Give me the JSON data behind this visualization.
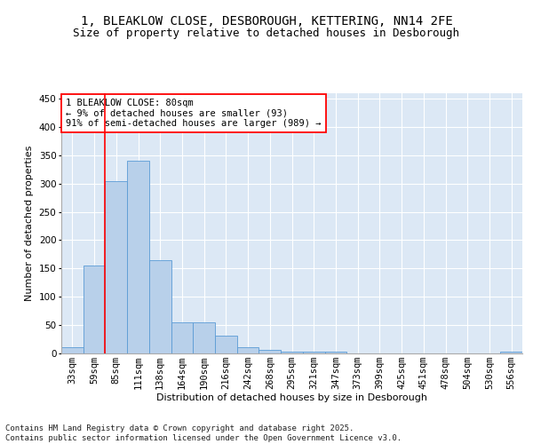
{
  "title_line1": "1, BLEAKLOW CLOSE, DESBOROUGH, KETTERING, NN14 2FE",
  "title_line2": "Size of property relative to detached houses in Desborough",
  "xlabel": "Distribution of detached houses by size in Desborough",
  "ylabel": "Number of detached properties",
  "bar_color": "#b8d0ea",
  "bar_edge_color": "#5b9bd5",
  "bg_color": "#dce8f5",
  "annotation_text": "1 BLEAKLOW CLOSE: 80sqm\n← 9% of detached houses are smaller (93)\n91% of semi-detached houses are larger (989) →",
  "categories": [
    "33sqm",
    "59sqm",
    "85sqm",
    "111sqm",
    "138sqm",
    "164sqm",
    "190sqm",
    "216sqm",
    "242sqm",
    "268sqm",
    "295sqm",
    "321sqm",
    "347sqm",
    "373sqm",
    "399sqm",
    "425sqm",
    "451sqm",
    "478sqm",
    "504sqm",
    "530sqm",
    "556sqm"
  ],
  "values": [
    10,
    155,
    305,
    340,
    165,
    55,
    55,
    30,
    10,
    5,
    2,
    2,
    2,
    0,
    0,
    0,
    0,
    0,
    0,
    0,
    2
  ],
  "ylim": [
    0,
    460
  ],
  "yticks": [
    0,
    50,
    100,
    150,
    200,
    250,
    300,
    350,
    400,
    450
  ],
  "footer_text": "Contains HM Land Registry data © Crown copyright and database right 2025.\nContains public sector information licensed under the Open Government Licence v3.0.",
  "title_fontsize": 10,
  "subtitle_fontsize": 9,
  "axis_label_fontsize": 8,
  "tick_fontsize": 7.5,
  "footer_fontsize": 6.5,
  "annot_fontsize": 7.5,
  "red_line_x": 1.5
}
